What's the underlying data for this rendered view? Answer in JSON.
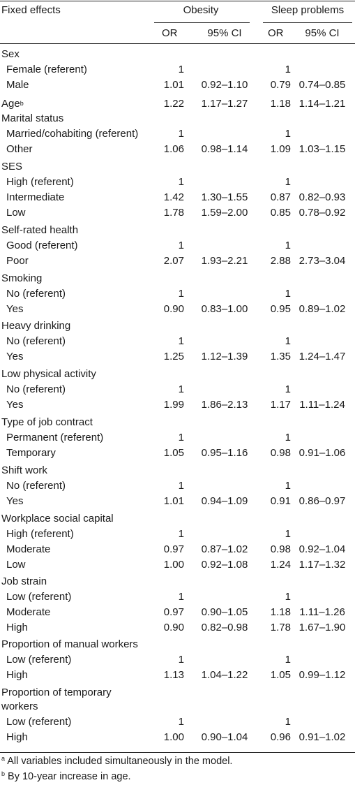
{
  "header": {
    "fixed_effects": "Fixed effects",
    "group1": "Obesity",
    "group2": "Sleep problems",
    "or_label": "OR",
    "ci_label": "95% CI"
  },
  "rows": [
    {
      "label": "Sex",
      "indent": false
    },
    {
      "label": "Female (referent)",
      "indent": true,
      "or1": "1",
      "ci1": "",
      "or2": "1",
      "ci2": ""
    },
    {
      "label": "Male",
      "indent": true,
      "or1": "1.01",
      "ci1": "0.92–1.10",
      "or2": "0.79",
      "ci2": "0.74–0.85"
    },
    {
      "label": "Age",
      "sup": "b",
      "indent": false,
      "or1": "1.22",
      "ci1": "1.17–1.27",
      "or2": "1.18",
      "ci2": "1.14–1.21"
    },
    {
      "label": "Marital status",
      "indent": false
    },
    {
      "label": "Married/cohabiting (referent)",
      "indent": true,
      "or1": "1",
      "ci1": "",
      "or2": "1",
      "ci2": ""
    },
    {
      "label": "Other",
      "indent": true,
      "or1": "1.06",
      "ci1": "0.98–1.14",
      "or2": "1.09",
      "ci2": "1.03–1.15"
    },
    {
      "label": "SES",
      "indent": false
    },
    {
      "label": "High (referent)",
      "indent": true,
      "or1": "1",
      "ci1": "",
      "or2": "1",
      "ci2": ""
    },
    {
      "label": "Intermediate",
      "indent": true,
      "or1": "1.42",
      "ci1": "1.30–1.55",
      "or2": "0.87",
      "ci2": "0.82–0.93"
    },
    {
      "label": "Low",
      "indent": true,
      "or1": "1.78",
      "ci1": "1.59–2.00",
      "or2": "0.85",
      "ci2": "0.78–0.92"
    },
    {
      "label": "Self-rated health",
      "indent": false
    },
    {
      "label": "Good (referent)",
      "indent": true,
      "or1": "1",
      "ci1": "",
      "or2": "1",
      "ci2": ""
    },
    {
      "label": "Poor",
      "indent": true,
      "or1": "2.07",
      "ci1": "1.93–2.21",
      "or2": "2.88",
      "ci2": "2.73–3.04"
    },
    {
      "label": "Smoking",
      "indent": false
    },
    {
      "label": "No (referent)",
      "indent": true,
      "or1": "1",
      "ci1": "",
      "or2": "1",
      "ci2": ""
    },
    {
      "label": "Yes",
      "indent": true,
      "or1": "0.90",
      "ci1": "0.83–1.00",
      "or2": "0.95",
      "ci2": "0.89–1.02"
    },
    {
      "label": "Heavy drinking",
      "indent": false
    },
    {
      "label": "No (referent)",
      "indent": true,
      "or1": "1",
      "ci1": "",
      "or2": "1",
      "ci2": ""
    },
    {
      "label": "Yes",
      "indent": true,
      "or1": "1.25",
      "ci1": "1.12–1.39",
      "or2": "1.35",
      "ci2": "1.24–1.47"
    },
    {
      "label": "Low physical activity",
      "indent": false
    },
    {
      "label": "No (referent)",
      "indent": true,
      "or1": "1",
      "ci1": "",
      "or2": "1",
      "ci2": ""
    },
    {
      "label": "Yes",
      "indent": true,
      "or1": "1.99",
      "ci1": "1.86–2.13",
      "or2": "1.17",
      "ci2": "1.11–1.24"
    },
    {
      "label": "Type of job contract",
      "indent": false
    },
    {
      "label": "Permanent (referent)",
      "indent": true,
      "or1": "1",
      "ci1": "",
      "or2": "1",
      "ci2": ""
    },
    {
      "label": "Temporary",
      "indent": true,
      "or1": "1.05",
      "ci1": "0.95–1.16",
      "or2": "0.98",
      "ci2": "0.91–1.06"
    },
    {
      "label": "Shift work",
      "indent": false
    },
    {
      "label": "No (referent)",
      "indent": true,
      "or1": "1",
      "ci1": "",
      "or2": "1",
      "ci2": ""
    },
    {
      "label": "Yes",
      "indent": true,
      "or1": "1.01",
      "ci1": "0.94–1.09",
      "or2": "0.91",
      "ci2": "0.86–0.97"
    },
    {
      "label": "Workplace social capital",
      "indent": false
    },
    {
      "label": "High (referent)",
      "indent": true,
      "or1": "1",
      "ci1": "",
      "or2": "1",
      "ci2": ""
    },
    {
      "label": "Moderate",
      "indent": true,
      "or1": "0.97",
      "ci1": "0.87–1.02",
      "or2": "0.98",
      "ci2": "0.92–1.04"
    },
    {
      "label": "Low",
      "indent": true,
      "or1": "1.00",
      "ci1": "0.92–1.08",
      "or2": "1.24",
      "ci2": "1.17–1.32"
    },
    {
      "label": "Job strain",
      "indent": false
    },
    {
      "label": "Low (referent)",
      "indent": true,
      "or1": "1",
      "ci1": "",
      "or2": "1",
      "ci2": ""
    },
    {
      "label": "Moderate",
      "indent": true,
      "or1": "0.97",
      "ci1": "0.90–1.05",
      "or2": "1.18",
      "ci2": "1.11–1.26"
    },
    {
      "label": "High",
      "indent": true,
      "or1": "0.90",
      "ci1": "0.82–0.98",
      "or2": "1.78",
      "ci2": "1.67–1.90"
    },
    {
      "label": "Proportion of manual workers",
      "indent": false
    },
    {
      "label": "Low (referent)",
      "indent": true,
      "or1": "1",
      "ci1": "",
      "or2": "1",
      "ci2": ""
    },
    {
      "label": "High",
      "indent": true,
      "or1": "1.13",
      "ci1": "1.04–1.22",
      "or2": "1.05",
      "ci2": "0.99–1.12"
    },
    {
      "label": "Proportion of temporary",
      "indent": false
    },
    {
      "label": "workers",
      "indent": false
    },
    {
      "label": "Low (referent)",
      "indent": true,
      "or1": "1",
      "ci1": "",
      "or2": "1",
      "ci2": ""
    },
    {
      "label": "High",
      "indent": true,
      "or1": "1.00",
      "ci1": "0.90–1.04",
      "or2": "0.96",
      "ci2": "0.91–1.02"
    }
  ],
  "footnotes": [
    {
      "mark": "a",
      "text": "All variables included simultaneously in the model."
    },
    {
      "mark": "b",
      "text": "By 10-year increase in age."
    }
  ]
}
